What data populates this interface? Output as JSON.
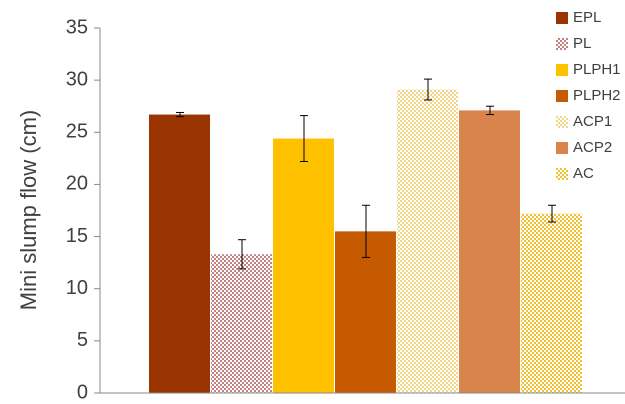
{
  "chart_data": {
    "type": "bar",
    "y_label": "Mini slump flow (cm)",
    "ylim": [
      0,
      35
    ],
    "yticks": [
      0,
      5,
      10,
      15,
      20,
      25,
      30,
      35
    ],
    "legend": "right",
    "series": [
      {
        "name": "EPL",
        "color": "#9a3400",
        "pattern": "solid",
        "values": [
          26.7
        ],
        "errors": [
          0.2
        ]
      },
      {
        "name": "PL",
        "color": "#b05858",
        "pattern": "dots",
        "values": [
          13.3
        ],
        "errors": [
          1.4
        ]
      },
      {
        "name": "PLPH1",
        "color": "#ffc000",
        "pattern": "solid",
        "values": [
          24.4
        ],
        "errors": [
          2.2
        ]
      },
      {
        "name": "PLPH2",
        "color": "#c55a00",
        "pattern": "solid",
        "values": [
          15.5
        ],
        "errors": [
          2.5
        ]
      },
      {
        "name": "ACP1",
        "color": "#f0c860",
        "pattern": "dots",
        "values": [
          29.1
        ],
        "errors": [
          1.0
        ]
      },
      {
        "name": "ACP2",
        "color": "#d9844a",
        "pattern": "solid",
        "values": [
          27.1
        ],
        "errors": [
          0.4
        ]
      },
      {
        "name": "AC",
        "color": "#f2c030",
        "pattern": "checker",
        "values": [
          17.2
        ],
        "errors": [
          0.8
        ]
      }
    ]
  }
}
